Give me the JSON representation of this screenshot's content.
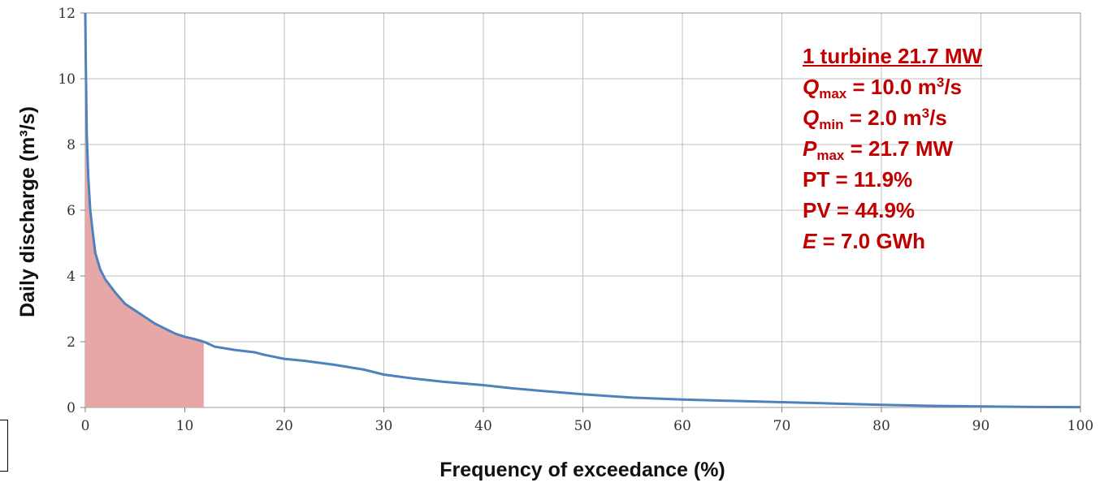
{
  "chart_data": {
    "type": "area",
    "xlabel": "Frequency of exceedance (%)",
    "ylabel": "Daily discharge (m³/s)",
    "xlim": [
      0,
      100
    ],
    "ylim": [
      0,
      12
    ],
    "xticks": [
      "0",
      "10",
      "20",
      "30",
      "40",
      "50",
      "60",
      "70",
      "80",
      "90",
      "100"
    ],
    "yticks": [
      "0",
      "2",
      "4",
      "6",
      "8",
      "10",
      "12"
    ],
    "grid": true,
    "line_color": "#4f81bd",
    "fill_color": "#e6a2a2",
    "series": [
      {
        "x": [
          0,
          0.05,
          0.15,
          0.3,
          0.5,
          0.8,
          1,
          1.5,
          2,
          2.5,
          3,
          4,
          5,
          6,
          7,
          8,
          9,
          10,
          11,
          11.9,
          13,
          15,
          17,
          18,
          20,
          22,
          25,
          28,
          30,
          33,
          36,
          40,
          43,
          46,
          50,
          55,
          60,
          65,
          70,
          75,
          80,
          85,
          90,
          95,
          100
        ],
        "y": [
          12,
          10.5,
          8.3,
          7.0,
          6.0,
          5.2,
          4.7,
          4.2,
          3.9,
          3.7,
          3.5,
          3.15,
          2.95,
          2.75,
          2.55,
          2.4,
          2.25,
          2.15,
          2.08,
          2.0,
          1.85,
          1.75,
          1.68,
          1.6,
          1.48,
          1.42,
          1.3,
          1.15,
          1.0,
          0.88,
          0.78,
          0.68,
          0.58,
          0.5,
          0.4,
          0.3,
          0.24,
          0.2,
          0.16,
          0.12,
          0.08,
          0.05,
          0.03,
          0.015,
          0.01
        ]
      }
    ],
    "shaded_region": {
      "x_from": 0,
      "x_to": 11.9,
      "y_max": 10.0
    }
  },
  "annotation": {
    "title": "1 turbine 21.7 MW",
    "qmax": {
      "sym": "Q",
      "sub": "max",
      "eq": " = 10.0 m",
      "sup": "3",
      "tail": "/s"
    },
    "qmin": {
      "sym": "Q",
      "sub": "min",
      "eq": " = 2.0 m",
      "sup": "3",
      "tail": "/s"
    },
    "pmax": {
      "sym": "P",
      "sub": "max",
      "eq": " = 21.7 MW"
    },
    "pt": "PT = 11.9%",
    "pv": "PV = 44.9%",
    "energy": {
      "sym": "E",
      "eq": " = 7.0 GWh"
    }
  }
}
